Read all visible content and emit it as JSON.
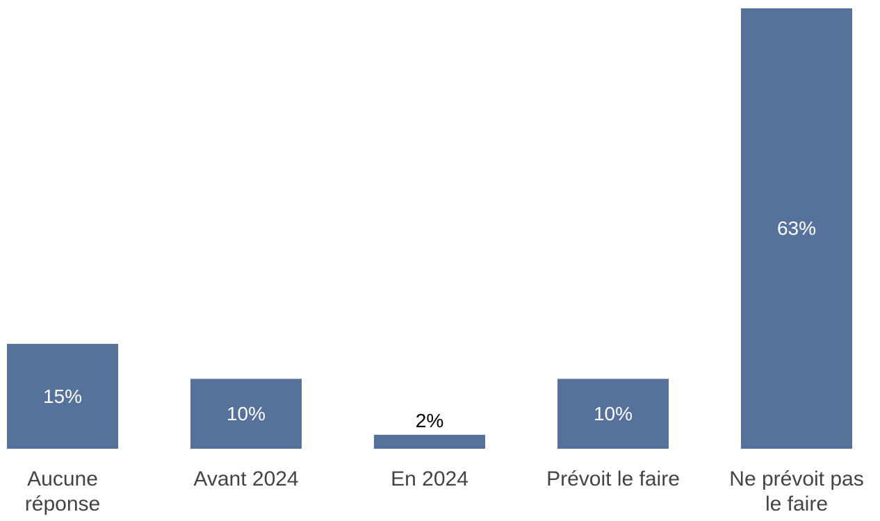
{
  "chart_data": {
    "type": "bar",
    "categories": [
      "Aucune\nréponse",
      "Avant 2024",
      "En 2024",
      "Prévoit le faire",
      "Ne prévoit pas\nle faire"
    ],
    "values": [
      15,
      10,
      2,
      10,
      63
    ],
    "value_labels": [
      "15%",
      "10%",
      "2%",
      "10%",
      "63%"
    ],
    "color": "#56729a",
    "ylim": [
      0,
      63
    ]
  }
}
